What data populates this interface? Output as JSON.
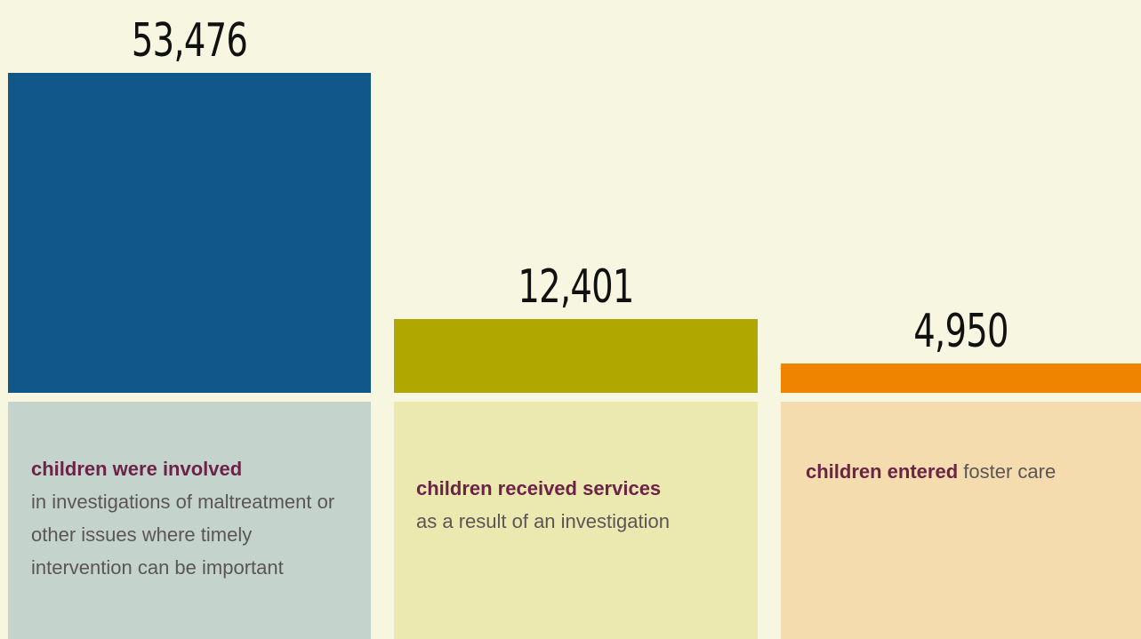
{
  "chart_data": {
    "type": "bar",
    "ylim": [
      0,
      53476
    ],
    "grid": false,
    "items": [
      {
        "value": 53476,
        "value_label": "53,476",
        "bar_color": "#11578a",
        "card_color": "#c4d4cd",
        "strong": "children were involved",
        "rest": "in investigations of maltreatment or other issues where timely intervention can be important"
      },
      {
        "value": 12401,
        "value_label": "12,401",
        "bar_color": "#b0a700",
        "card_color": "#ebe8b0",
        "strong": "children received services",
        "rest": "as a result of an investigation"
      },
      {
        "value": 4950,
        "value_label": "4,950",
        "bar_color": "#ef8400",
        "card_color": "#f4dcae",
        "strong": "children entered",
        "rest": "foster care"
      }
    ]
  }
}
